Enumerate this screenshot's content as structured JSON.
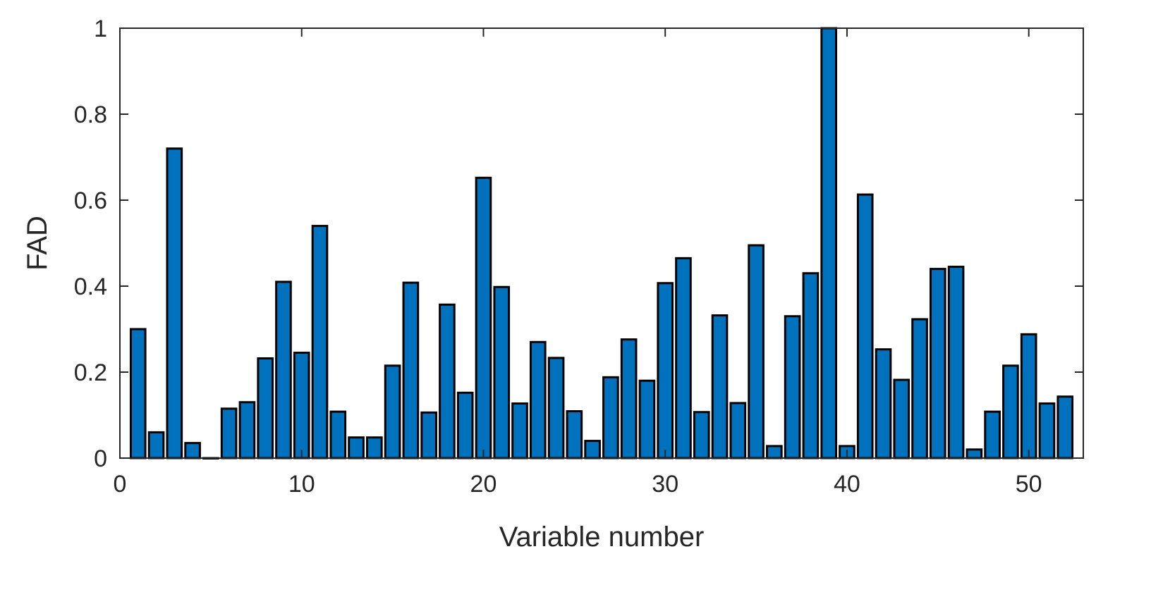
{
  "chart_data": {
    "type": "bar",
    "xlabel": "Variable number",
    "ylabel": "FAD",
    "xlim": [
      0,
      53
    ],
    "ylim": [
      0,
      1
    ],
    "xticks": [
      0,
      10,
      20,
      30,
      40,
      50
    ],
    "xtick_labels": [
      "0",
      "10",
      "20",
      "30",
      "40",
      "50"
    ],
    "yticks": [
      0,
      0.2,
      0.4,
      0.6,
      0.8,
      1
    ],
    "ytick_labels": [
      "0",
      "0.2",
      "0.4",
      "0.6",
      "0.8",
      "1"
    ],
    "grid": false,
    "bar_color": "#0072BD",
    "edge_color": "#000000",
    "categories": [
      1,
      2,
      3,
      4,
      5,
      6,
      7,
      8,
      9,
      10,
      11,
      12,
      13,
      14,
      15,
      16,
      17,
      18,
      19,
      20,
      21,
      22,
      23,
      24,
      25,
      26,
      27,
      28,
      29,
      30,
      31,
      32,
      33,
      34,
      35,
      36,
      37,
      38,
      39,
      40,
      41,
      42,
      43,
      44,
      45,
      46,
      47,
      48,
      49,
      50,
      51,
      52
    ],
    "values": [
      0.3,
      0.06,
      0.72,
      0.035,
      0.0,
      0.115,
      0.13,
      0.232,
      0.41,
      0.245,
      0.54,
      0.108,
      0.048,
      0.048,
      0.215,
      0.408,
      0.106,
      0.357,
      0.152,
      0.652,
      0.398,
      0.127,
      0.27,
      0.233,
      0.109,
      0.04,
      0.188,
      0.276,
      0.18,
      0.407,
      0.465,
      0.107,
      0.332,
      0.128,
      0.495,
      0.028,
      0.33,
      0.43,
      1.0,
      0.028,
      0.613,
      0.253,
      0.182,
      0.323,
      0.44,
      0.445,
      0.02,
      0.108,
      0.215,
      0.288,
      0.127,
      0.143
    ]
  }
}
